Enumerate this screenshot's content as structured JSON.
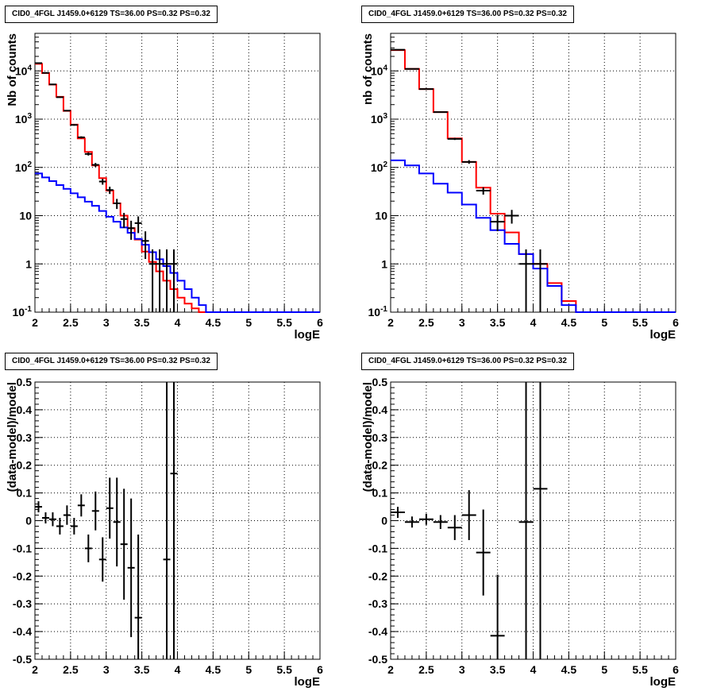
{
  "chart_data": [
    {
      "type": "step",
      "panel": "top-left",
      "title": "CID0_4FGL J1459.0+6129 TS=36.00 PS=0.32 PS=0.32",
      "xlabel": "logE",
      "ylabel": "Nb of counts",
      "xlim": [
        2,
        6
      ],
      "ylim": [
        0.1,
        60000
      ],
      "yscale": "log",
      "grid": true,
      "x_ticks": [
        "2",
        "2.5",
        "3",
        "3.5",
        "4",
        "4.5",
        "5",
        "5.5",
        "6"
      ],
      "y_ticks": [
        "10^-1",
        "1",
        "10",
        "10^2",
        "10^3",
        "10^4"
      ],
      "bin_edges": [
        2.0,
        2.1,
        2.2,
        2.3,
        2.4,
        2.5,
        2.6,
        2.7,
        2.8,
        2.9,
        3.0,
        3.1,
        3.2,
        3.3,
        3.4,
        3.5,
        3.6,
        3.7,
        3.8,
        3.9,
        4.0,
        4.1,
        4.2,
        4.3,
        4.4,
        4.5,
        4.6,
        4.7,
        4.8,
        4.9,
        5.0,
        5.1,
        5.2,
        5.3,
        5.4,
        5.5,
        5.6,
        5.7,
        5.8,
        5.9,
        6.0
      ],
      "series": [
        {
          "color": "#ff0000",
          "style": "step",
          "values": [
            14000,
            9000,
            5200,
            2900,
            1480,
            770,
            400,
            210,
            110,
            60,
            33,
            18,
            10,
            5.5,
            3.2,
            1.8,
            1.1,
            0.7,
            0.45,
            0.3,
            0.2,
            0.15,
            0.12,
            0.1,
            0.1,
            0.1,
            0.1,
            0.1,
            0.1,
            0.1,
            0.1,
            0.1,
            0.1,
            0.1,
            0.1,
            0.1,
            0.1,
            0.1,
            0.1,
            0.1
          ]
        },
        {
          "color": "#0000ff",
          "style": "step",
          "values": [
            75,
            62,
            52,
            43,
            36,
            29,
            24,
            19.5,
            16,
            12.5,
            9.5,
            7.5,
            5.7,
            4.4,
            3.3,
            2.5,
            1.75,
            1.25,
            0.9,
            0.65,
            0.45,
            0.3,
            0.2,
            0.14,
            0.1,
            0.1,
            0.1,
            0.1,
            0.1,
            0.1,
            0.1,
            0.1,
            0.1,
            0.1,
            0.1,
            0.1,
            0.1,
            0.1,
            0.1,
            0.1
          ]
        },
        {
          "color": "#000000",
          "style": "errorbars",
          "points": [
            {
              "x": 2.05,
              "y": 14500
            },
            {
              "x": 2.15,
              "y": 9100
            },
            {
              "x": 2.25,
              "y": 5250
            },
            {
              "x": 2.35,
              "y": 2850
            },
            {
              "x": 2.45,
              "y": 1500
            },
            {
              "x": 2.55,
              "y": 760
            },
            {
              "x": 2.65,
              "y": 420
            },
            {
              "x": 2.75,
              "y": 190
            },
            {
              "x": 2.85,
              "y": 113
            },
            {
              "x": 2.95,
              "y": 51
            },
            {
              "x": 3.05,
              "y": 34
            },
            {
              "x": 3.15,
              "y": 18
            },
            {
              "x": 3.25,
              "y": 8.5
            },
            {
              "x": 3.35,
              "y": 5.5
            },
            {
              "x": 3.45,
              "y": 7
            },
            {
              "x": 3.55,
              "y": 3
            },
            {
              "x": 3.65,
              "y": 1
            },
            {
              "x": 3.75,
              "y": 1
            },
            {
              "x": 3.85,
              "y": 1
            },
            {
              "x": 3.95,
              "y": 1
            }
          ]
        }
      ]
    },
    {
      "type": "step",
      "panel": "top-right",
      "title": "CID0_4FGL J1459.0+6129 TS=36.00 PS=0.32 PS=0.32",
      "xlabel": "logE",
      "ylabel": "nb of counts",
      "xlim": [
        2,
        6
      ],
      "ylim": [
        0.1,
        60000
      ],
      "yscale": "log",
      "grid": true,
      "x_ticks": [
        "2",
        "2.5",
        "3",
        "3.5",
        "4",
        "4.5",
        "5",
        "5.5",
        "6"
      ],
      "y_ticks": [
        "10^-1",
        "1",
        "10",
        "10^2",
        "10^3",
        "10^4"
      ],
      "bin_edges": [
        2.0,
        2.2,
        2.4,
        2.6,
        2.8,
        3.0,
        3.2,
        3.4,
        3.6,
        3.8,
        4.0,
        4.2,
        4.4,
        4.6,
        4.8,
        5.0,
        5.2,
        5.4,
        5.6,
        5.8,
        6.0
      ],
      "series": [
        {
          "color": "#ff0000",
          "style": "step",
          "values": [
            27000,
            11000,
            4200,
            1400,
            400,
            130,
            38,
            11,
            4.5,
            1.6,
            1.0,
            0.4,
            0.17,
            0.1,
            0.1,
            0.1,
            0.1,
            0.1,
            0.1,
            0.1
          ]
        },
        {
          "color": "#0000ff",
          "style": "step",
          "values": [
            140,
            110,
            75,
            46,
            30,
            17,
            9,
            5,
            2.6,
            1.6,
            0.8,
            0.35,
            0.14,
            0.1,
            0.1,
            0.1,
            0.1,
            0.1,
            0.1,
            0.1
          ]
        },
        {
          "color": "#000000",
          "style": "errorbars",
          "points": [
            {
              "x": 2.1,
              "y": 27500
            },
            {
              "x": 2.3,
              "y": 11000
            },
            {
              "x": 2.5,
              "y": 4200
            },
            {
              "x": 2.7,
              "y": 1400
            },
            {
              "x": 2.9,
              "y": 390
            },
            {
              "x": 3.1,
              "y": 130
            },
            {
              "x": 3.3,
              "y": 33
            },
            {
              "x": 3.5,
              "y": 7.5
            },
            {
              "x": 3.7,
              "y": 10
            },
            {
              "x": 3.9,
              "y": 1
            },
            {
              "x": 4.1,
              "y": 1
            }
          ]
        }
      ]
    },
    {
      "type": "scatter",
      "panel": "bottom-left",
      "title": "CID0_4FGL J1459.0+6129 TS=36.00 PS=0.32 PS=0.32",
      "xlabel": "logE",
      "ylabel": "(data-model)/model",
      "xlim": [
        2,
        6
      ],
      "ylim": [
        -0.5,
        0.5
      ],
      "grid": true,
      "x_ticks": [
        "2",
        "2.5",
        "3",
        "3.5",
        "4",
        "4.5",
        "5",
        "5.5",
        "6"
      ],
      "y_ticks": [
        "-0.5",
        "-0.4",
        "-0.3",
        "-0.2",
        "-0.1",
        "0",
        "0.1",
        "0.2",
        "0.3",
        "0.4",
        "0.5"
      ],
      "points": [
        {
          "x": 2.05,
          "y": 0.05,
          "err": 0.02
        },
        {
          "x": 2.15,
          "y": 0.01,
          "err": 0.02
        },
        {
          "x": 2.25,
          "y": 0.005,
          "err": 0.025
        },
        {
          "x": 2.35,
          "y": -0.02,
          "err": 0.03
        },
        {
          "x": 2.45,
          "y": 0.02,
          "err": 0.035
        },
        {
          "x": 2.55,
          "y": -0.02,
          "err": 0.03
        },
        {
          "x": 2.65,
          "y": 0.055,
          "err": 0.04
        },
        {
          "x": 2.75,
          "y": -0.1,
          "err": 0.05
        },
        {
          "x": 2.85,
          "y": 0.035,
          "err": 0.07
        },
        {
          "x": 2.95,
          "y": -0.14,
          "err": 0.08
        },
        {
          "x": 3.05,
          "y": 0.045,
          "err": 0.11
        },
        {
          "x": 3.15,
          "y": -0.005,
          "err": 0.16
        },
        {
          "x": 3.25,
          "y": -0.085,
          "err": 0.2
        },
        {
          "x": 3.35,
          "y": -0.17,
          "err": 0.25
        },
        {
          "x": 3.45,
          "y": -0.35,
          "err": 0.3
        },
        {
          "x": 3.85,
          "y": -0.14,
          "err": 0.9
        },
        {
          "x": 3.95,
          "y": 0.17,
          "err": 0.9
        }
      ]
    },
    {
      "type": "scatter",
      "panel": "bottom-right",
      "title": "CID0_4FGL J1459.0+6129 TS=36.00 PS=0.32 PS=0.32",
      "xlabel": "logE",
      "ylabel": "(data-model)/model",
      "xlim": [
        2,
        6
      ],
      "ylim": [
        -0.5,
        0.5
      ],
      "grid": true,
      "x_ticks": [
        "2",
        "2.5",
        "3",
        "3.5",
        "4",
        "4.5",
        "5",
        "5.5",
        "6"
      ],
      "y_ticks": [
        "-0.5",
        "-0.4",
        "-0.3",
        "-0.2",
        "-0.1",
        "0",
        "0.1",
        "0.2",
        "0.3",
        "0.4",
        "0.5"
      ],
      "points": [
        {
          "x": 2.1,
          "y": 0.03,
          "err": 0.02
        },
        {
          "x": 2.3,
          "y": -0.005,
          "err": 0.02
        },
        {
          "x": 2.5,
          "y": 0.005,
          "err": 0.02
        },
        {
          "x": 2.7,
          "y": -0.005,
          "err": 0.025
        },
        {
          "x": 2.9,
          "y": -0.025,
          "err": 0.045
        },
        {
          "x": 3.1,
          "y": 0.02,
          "err": 0.09
        },
        {
          "x": 3.3,
          "y": -0.115,
          "err": 0.155
        },
        {
          "x": 3.5,
          "y": -0.415,
          "err": 0.22
        },
        {
          "x": 3.9,
          "y": -0.005,
          "err": 0.9
        },
        {
          "x": 4.1,
          "y": 0.115,
          "err": 0.9
        }
      ]
    }
  ]
}
